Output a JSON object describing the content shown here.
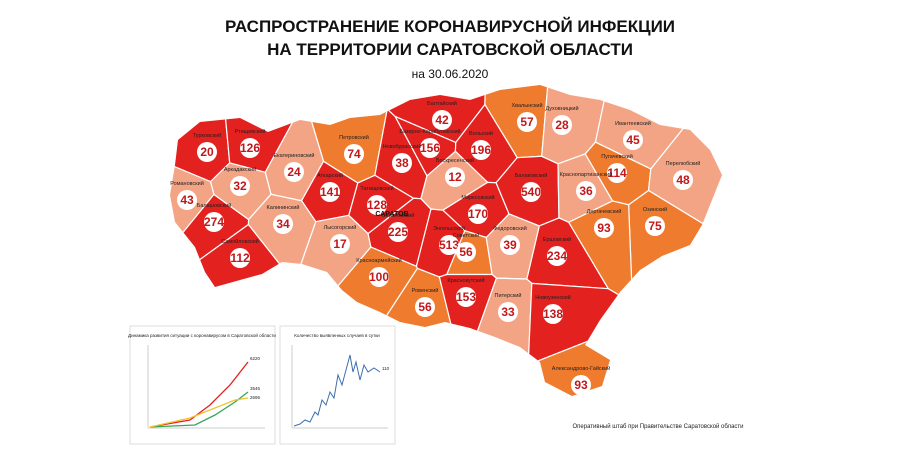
{
  "header": {
    "title_line1": "РАСПРОСТРАНЕНИЕ КОРОНАВИРУСНОЙ ИНФЕКЦИИ",
    "title_line2": "НА ТЕРРИТОРИИ САРАТОВСКОЙ ОБЛАСТИ",
    "date": "на 30.06.2020"
  },
  "city": "САРАТОВ",
  "regions": [
    {
      "name": "Балтайский",
      "cases": 42,
      "color": "#e3211f"
    },
    {
      "name": "Хвалынский",
      "cases": 57,
      "color": "#ef7b2f"
    },
    {
      "name": "Духовницкий",
      "cases": 28,
      "color": "#f3a485"
    },
    {
      "name": "Ивантеевский",
      "cases": 45,
      "color": "#f3a485"
    },
    {
      "name": "Петровский",
      "cases": 74,
      "color": "#ef7b2f"
    },
    {
      "name": "Базарно-Карабулакский",
      "cases": 156,
      "color": "#e3211f"
    },
    {
      "name": "Вольский",
      "cases": 196,
      "color": "#e3211f"
    },
    {
      "name": "Новобурасский",
      "cases": 38,
      "color": "#e3211f"
    },
    {
      "name": "Турковский",
      "cases": 20,
      "color": "#e3211f"
    },
    {
      "name": "Ртищевский",
      "cases": 126,
      "color": "#e3211f"
    },
    {
      "name": "Екатериновский",
      "cases": 24,
      "color": "#f3a485"
    },
    {
      "name": "Аткарский",
      "cases": 141,
      "color": "#e3211f"
    },
    {
      "name": "Аркадакский",
      "cases": 32,
      "color": "#f3a485"
    },
    {
      "name": "Романовский",
      "cases": 43,
      "color": "#f3a485"
    },
    {
      "name": "Балашовский",
      "cases": 274,
      "color": "#e3211f"
    },
    {
      "name": "Самойловский",
      "cases": 112,
      "color": "#e3211f"
    },
    {
      "name": "Калининский",
      "cases": 34,
      "color": "#f3a485"
    },
    {
      "name": "Лысогорский",
      "cases": 17,
      "color": "#f3a485"
    },
    {
      "name": "Татищевский",
      "cases": 128,
      "color": "#e3211f"
    },
    {
      "name": "Саратовский",
      "cases": 225,
      "color": "#e3211f"
    },
    {
      "name": "Воскресенский",
      "cases": 12,
      "color": "#f3a485"
    },
    {
      "name": "Марксовский",
      "cases": 170,
      "color": "#e3211f"
    },
    {
      "name": "Энгельсский",
      "cases": 513,
      "color": "#e3211f"
    },
    {
      "name": "Балаковский",
      "cases": 540,
      "color": "#e3211f"
    },
    {
      "name": "Пугачевский",
      "cases": 114,
      "color": "#ef7b2f"
    },
    {
      "name": "Перелюбский",
      "cases": 48,
      "color": "#f3a485"
    },
    {
      "name": "Краснопартизанский",
      "cases": 36,
      "color": "#f3a485"
    },
    {
      "name": "Ершовский",
      "cases": 234,
      "color": "#e3211f"
    },
    {
      "name": "Озинский",
      "cases": 75,
      "color": "#ef7b2f"
    },
    {
      "name": "Дергачевский",
      "cases": 93,
      "color": "#ef7b2f"
    },
    {
      "name": "Советский",
      "cases": 56,
      "color": "#ef7b2f"
    },
    {
      "name": "Федоровский",
      "cases": 39,
      "color": "#f3a485"
    },
    {
      "name": "Красноармейский",
      "cases": 100,
      "color": "#ef7b2f"
    },
    {
      "name": "Ровенский",
      "cases": 56,
      "color": "#ef7b2f"
    },
    {
      "name": "Краснокутский",
      "cases": 153,
      "color": "#e3211f"
    },
    {
      "name": "Питерский",
      "cases": 33,
      "color": "#f3a485"
    },
    {
      "name": "Новоузенский",
      "cases": 138,
      "color": "#e3211f"
    },
    {
      "name": "Александрово-Гайский",
      "cases": 93,
      "color": "#ef7b2f"
    }
  ],
  "charts": [
    {
      "title": "Динамика развития ситуации с коронавирусом в Саратовской области",
      "labels": [
        "6220",
        "3546",
        "2695"
      ]
    },
    {
      "title": "Количество выявленных случаев в сутки",
      "labels": [
        "110"
      ]
    }
  ],
  "footer": "Оперативный штаб при Правительстве Саратовской области"
}
